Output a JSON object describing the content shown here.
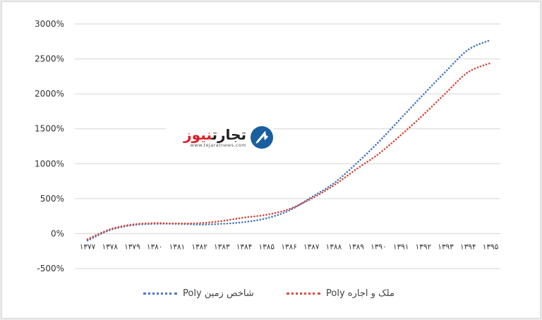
{
  "chart_data": {
    "type": "line",
    "title": "",
    "xlabel": "",
    "ylabel": "",
    "ylim": [
      -500,
      3000
    ],
    "yticks": [
      "3000%",
      "2500%",
      "2000%",
      "1500%",
      "1000%",
      "500%",
      "0%",
      "-500%"
    ],
    "ytick_values": [
      3000,
      2500,
      2000,
      1500,
      1000,
      500,
      0,
      -500
    ],
    "categories": [
      "۱۳۷۷",
      "۱۳۷۸",
      "۱۳۷۹",
      "۱۳۸۰",
      "۱۳۸۱",
      "۱۳۸۲",
      "۱۳۸۳",
      "۱۳۸۴",
      "۱۳۸۵",
      "۱۳۸۶",
      "۱۳۸۷",
      "۱۳۸۸",
      "۱۳۸۹",
      "۱۳۹۰",
      "۱۳۹۱",
      "۱۳۹۲",
      "۱۳۹۳",
      "۱۳۹۴",
      "۱۳۹۵"
    ],
    "grid": true,
    "legend_position": "bottom",
    "series": [
      {
        "name": "شاخص زمین Poly",
        "color": "#4a78c2",
        "values": [
          -100,
          50,
          120,
          140,
          140,
          130,
          140,
          165,
          220,
          330,
          520,
          720,
          1000,
          1310,
          1650,
          1990,
          2320,
          2630,
          2770
        ]
      },
      {
        "name": "ملک و اجاره Poly",
        "color": "#d24b3e",
        "values": [
          -80,
          60,
          130,
          150,
          145,
          150,
          180,
          230,
          270,
          350,
          500,
          690,
          920,
          1140,
          1410,
          1700,
          2010,
          2310,
          2440
        ]
      }
    ]
  },
  "logo": {
    "name_part1": "تجارت",
    "name_part2": "نیوز",
    "url": "www.tejaratnews.com"
  }
}
